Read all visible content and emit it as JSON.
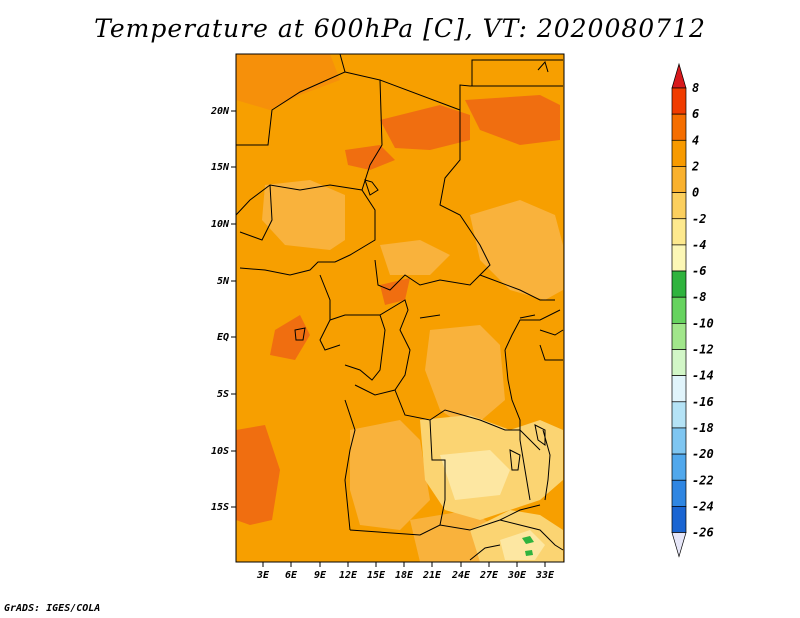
{
  "title": "Temperature at 600hPa [C], VT: 2020080712",
  "credit": "GrADS: IGES/COLA",
  "map": {
    "lat_labels": [
      "20N",
      "15N",
      "10N",
      "5N",
      "EQ",
      "5S",
      "10S",
      "15S"
    ],
    "lon_labels": [
      "3E",
      "6E",
      "9E",
      "12E",
      "15E",
      "18E",
      "21E",
      "24E",
      "27E",
      "30E",
      "33E"
    ]
  },
  "colorbar": {
    "labels": [
      "8",
      "6",
      "4",
      "2",
      "0",
      "-2",
      "-4",
      "-6",
      "-8",
      "-10",
      "-12",
      "-14",
      "-16",
      "-18",
      "-20",
      "-22",
      "-24",
      "-26"
    ],
    "colors": [
      "#d7191c",
      "#f03c00",
      "#f56e00",
      "#f79a00",
      "#f9b12e",
      "#fbcf5e",
      "#fde98e",
      "#fcf7b6",
      "#2fb33e",
      "#66d35f",
      "#a1e68b",
      "#d2f6c7",
      "#e1f4fb",
      "#b5e3f6",
      "#7fc6f1",
      "#51a8ec",
      "#2f86e2",
      "#1a65d2",
      "#0f48bd",
      "#0a2a94",
      "#050f5a",
      "#e6e6f8"
    ]
  }
}
